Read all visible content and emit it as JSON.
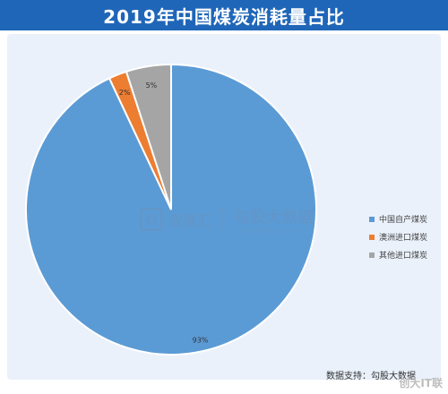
{
  "title": "2019年中国煤炭消耗量占比",
  "source": "数据支持：勾股大数据",
  "watermark": {
    "logo_letter": "G",
    "logo_name": "智堡汇",
    "brand": "勾股大数据",
    "url": "gogudata.com"
  },
  "corner_mark": "创大IT联",
  "colors": {
    "title_bar": "#1f66b8",
    "background": "#eaf1fb"
  },
  "chart_data": {
    "type": "pie",
    "title": "2019年中国煤炭消耗量占比",
    "slices": [
      {
        "label": "中国自产煤炭",
        "value": 93,
        "display": "93%",
        "color": "#5b9bd5"
      },
      {
        "label": "澳洲进口煤炭",
        "value": 2,
        "display": "2%",
        "color": "#ed7d31"
      },
      {
        "label": "其他进口煤炭",
        "value": 5,
        "display": "5%",
        "color": "#a5a5a5"
      }
    ],
    "legend_position": "right",
    "start": "12 o'clock, clockwise"
  }
}
